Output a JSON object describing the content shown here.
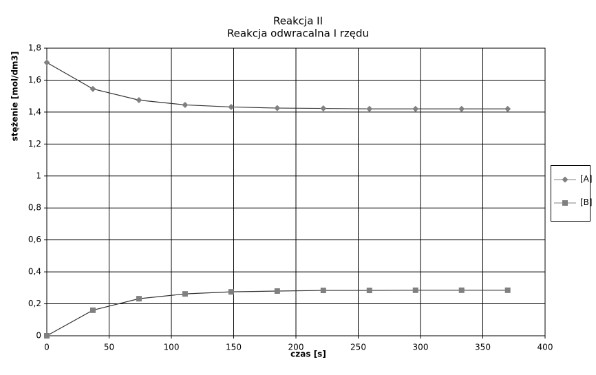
{
  "chart_data": {
    "type": "line",
    "title": "Reakcja II",
    "subtitle": "Reakcja odwracalna I rzędu",
    "x_label": "czas [s]",
    "y_label": "stężenie [mol/dm3]",
    "x": [
      0,
      37,
      74,
      111,
      148,
      185,
      222,
      259,
      296,
      333,
      370
    ],
    "series": [
      {
        "name": "[A]",
        "color": "#808080",
        "marker": "diamond",
        "values": [
          1.71,
          1.545,
          1.475,
          1.445,
          1.432,
          1.425,
          1.423,
          1.42,
          1.42,
          1.42,
          1.42
        ]
      },
      {
        "name": "[B]",
        "color": "#808080",
        "marker": "square",
        "values": [
          0,
          0.16,
          0.232,
          0.262,
          0.275,
          0.28,
          0.284,
          0.284,
          0.285,
          0.285,
          0.285
        ]
      }
    ],
    "xlim": [
      0,
      400
    ],
    "xticks": [
      0,
      50,
      100,
      150,
      200,
      250,
      300,
      350,
      400
    ],
    "ylim": [
      0,
      1.8
    ],
    "yticks": [
      0,
      {
        "value": 0.2,
        "label": "0,2"
      },
      {
        "value": 0.4,
        "label": "0,4"
      },
      {
        "value": 0.6,
        "label": "0,6"
      },
      {
        "value": 0.8,
        "label": "0,8"
      },
      1,
      {
        "value": 1.2,
        "label": "1,2"
      },
      {
        "value": 1.4,
        "label": "1,4"
      },
      {
        "value": 1.6,
        "label": "1,6"
      },
      {
        "value": 1.8,
        "label": "1,8"
      }
    ],
    "grid": true,
    "legend": "right"
  }
}
